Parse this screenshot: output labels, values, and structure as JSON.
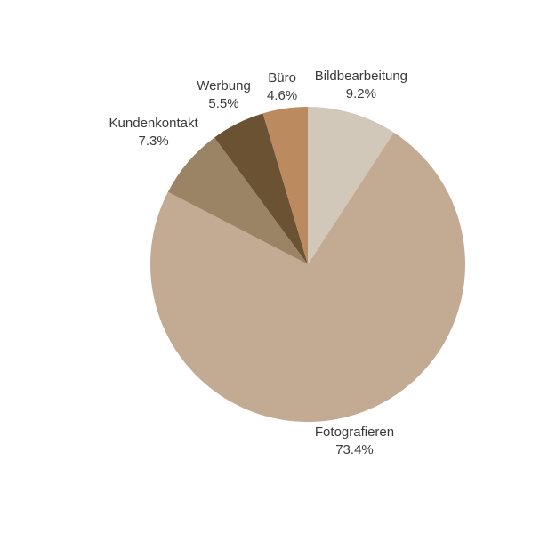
{
  "page": {
    "background": "#ffffff",
    "text_color": "#3a3a3a"
  },
  "chart_data": {
    "type": "pie",
    "title": "",
    "xlabel": "",
    "ylabel": "",
    "legend_position": "none",
    "labels_position": "outside",
    "direction": "clockwise",
    "start_angle_deg": 0,
    "slices": [
      {
        "label": "Bildbearbeitung",
        "value": 9.2,
        "pct_label": "9.2%",
        "color": "#d2c8b9"
      },
      {
        "label": "Fotografieren",
        "value": 73.4,
        "pct_label": "73.4%",
        "color": "#c3aa93"
      },
      {
        "label": "Kundenkontakt",
        "value": 7.3,
        "pct_label": "7.3%",
        "color": "#9a8465"
      },
      {
        "label": "Werbung",
        "value": 5.5,
        "pct_label": "5.5%",
        "color": "#6b5232"
      },
      {
        "label": "Büro",
        "value": 4.6,
        "pct_label": "4.6%",
        "color": "#bb8a5e"
      }
    ]
  }
}
